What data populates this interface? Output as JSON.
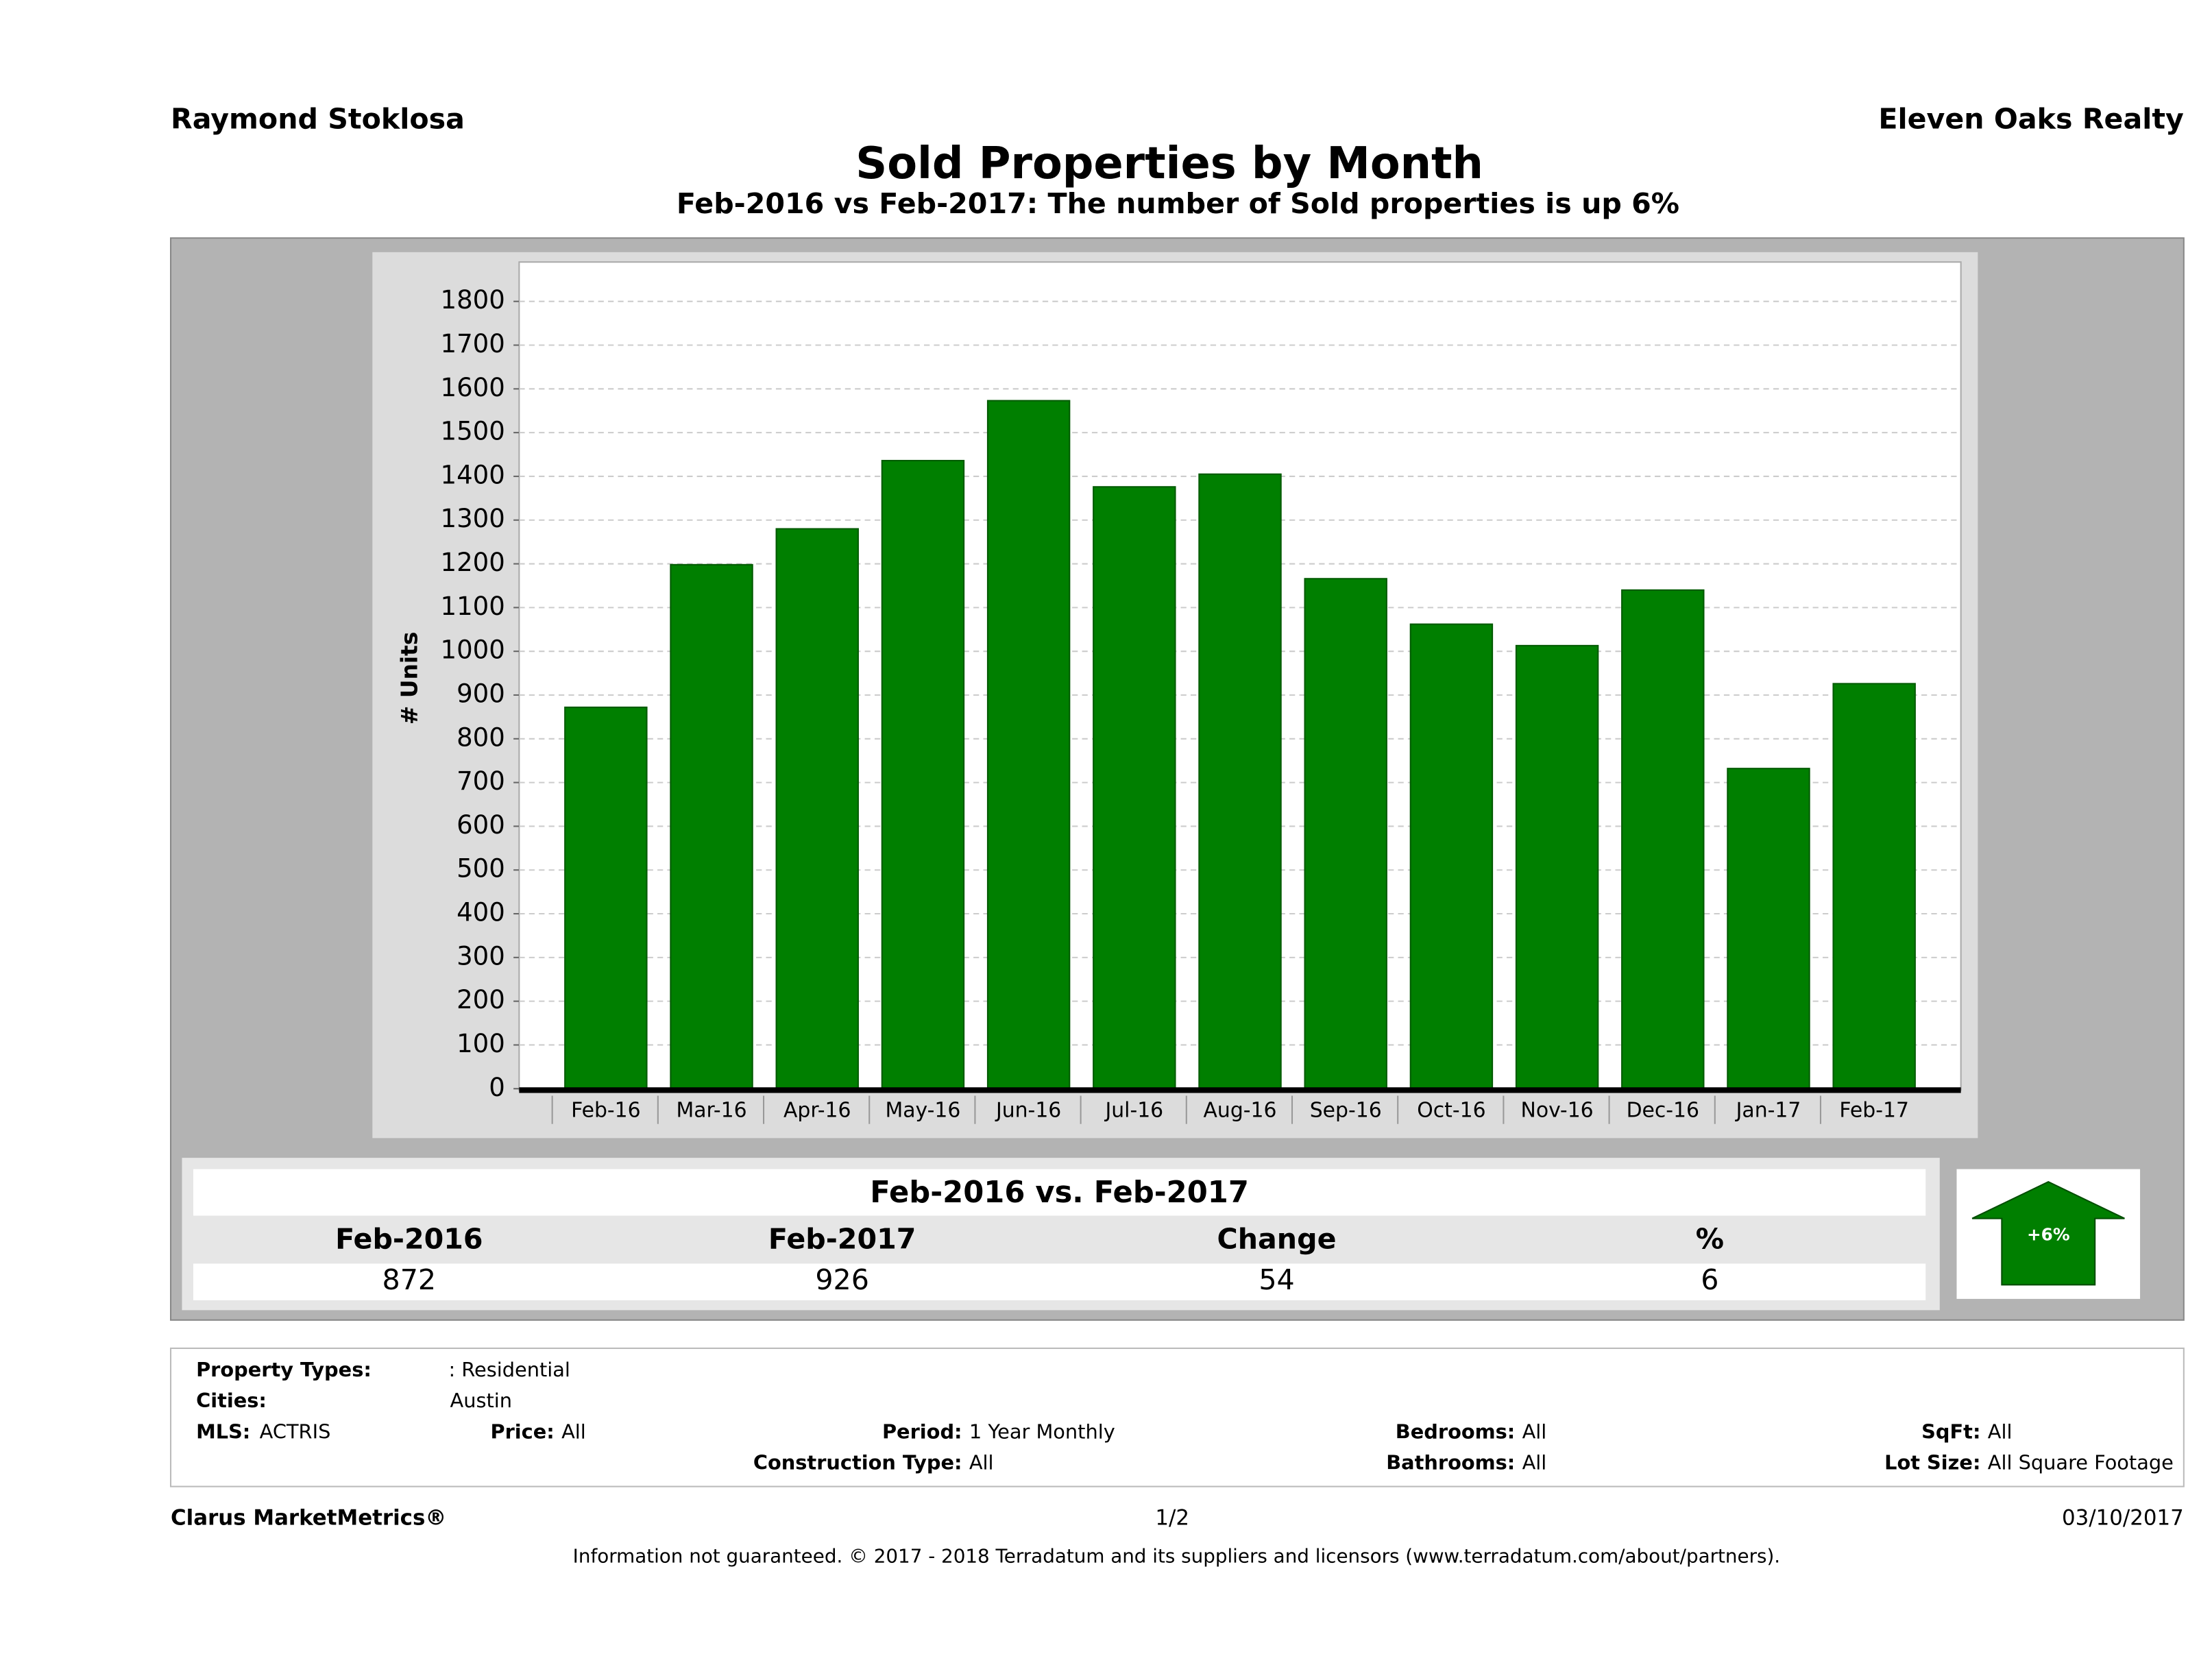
{
  "header": {
    "agent": "Raymond Stoklosa",
    "company": "Eleven Oaks Realty"
  },
  "chart_data": {
    "type": "bar",
    "title": "Sold Properties by Month",
    "subtitle": "Feb-2016 vs Feb-2017: The number of Sold  properties is up 6%",
    "y_label": "# Units",
    "categories": [
      "Feb-16",
      "Mar-16",
      "Apr-16",
      "May-16",
      "Jun-16",
      "Jul-16",
      "Aug-16",
      "Sep-16",
      "Oct-16",
      "Nov-16",
      "Dec-16",
      "Jan-17",
      "Feb-17"
    ],
    "values": [
      872,
      1198,
      1280,
      1436,
      1573,
      1376,
      1405,
      1166,
      1062,
      1013,
      1140,
      732,
      926
    ],
    "color": "#007f00",
    "ylim": [
      0,
      1890
    ],
    "yticks": [
      0,
      100,
      200,
      300,
      400,
      500,
      600,
      700,
      800,
      900,
      1000,
      1100,
      1200,
      1300,
      1400,
      1500,
      1600,
      1700,
      1800
    ],
    "grid": true
  },
  "summary": {
    "title": "Feb-2016 vs. Feb-2017",
    "columns": [
      "Feb-2016",
      "Feb-2017",
      "Change",
      "%"
    ],
    "row": [
      872,
      926,
      54,
      6
    ],
    "badge": "+6%"
  },
  "filters": [
    {
      "label": "Property Types:",
      "value": ": Residential"
    },
    {
      "label": "Cities:",
      "value": "Austin"
    },
    {
      "label": "MLS:",
      "value": "ACTRIS"
    },
    {
      "label": "Price:",
      "value": "All"
    },
    {
      "label": "Period:",
      "value": "1 Year Monthly"
    },
    {
      "label": "Bedrooms:",
      "value": "All"
    },
    {
      "label": "SqFt:",
      "value": "All"
    },
    {
      "label": "Construction Type:",
      "value": "All"
    },
    {
      "label": "Bathrooms:",
      "value": "All"
    },
    {
      "label": "Lot Size:",
      "value": "All Square Footage"
    }
  ],
  "footer": {
    "brand": "Clarus MarketMetrics®",
    "page": "1/2",
    "date": "03/10/2017",
    "disclaimer": "Information not guaranteed. © 2017 - 2018 Terradatum and its suppliers and licensors (www.terradatum.com/about/partners)."
  }
}
